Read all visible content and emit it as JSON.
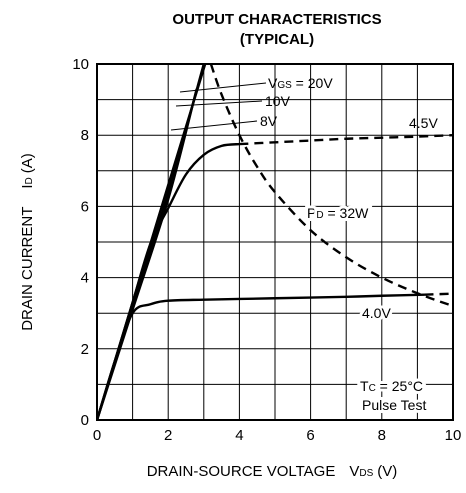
{
  "chart_data": {
    "type": "line",
    "title": "OUTPUT CHARACTERISTICS",
    "subtitle": "(TYPICAL)",
    "xlabel": "DRAIN-SOURCE VOLTAGE",
    "xlabel_symbol_main": "V",
    "xlabel_symbol_sub": "DS",
    "xlabel_unit": "(V)",
    "ylabel": "DRAIN CURRENT",
    "ylabel_symbol_main": "I",
    "ylabel_symbol_sub": "D",
    "ylabel_unit": "(A)",
    "xlim": [
      0,
      10
    ],
    "ylim": [
      0,
      10
    ],
    "xticks": [
      0,
      2,
      4,
      6,
      8,
      10
    ],
    "yticks": [
      0,
      2,
      4,
      6,
      8,
      10
    ],
    "grid": true,
    "series": [
      {
        "name": "VGS = 20V",
        "style": "solid",
        "x": [
          0,
          1,
          2,
          3.1
        ],
        "y": [
          0,
          3.3,
          6.6,
          10.2
        ]
      },
      {
        "name": "10V",
        "style": "solid",
        "x": [
          0,
          1,
          2,
          3.0
        ],
        "y": [
          0,
          3.2,
          6.4,
          10.0
        ]
      },
      {
        "name": "8V",
        "style": "solid",
        "x": [
          0,
          1,
          2,
          2.8
        ],
        "y": [
          0,
          3.1,
          6.2,
          9.3
        ]
      },
      {
        "name": "4.5V",
        "style": "solid",
        "x": [
          0,
          0.5,
          1,
          1.5,
          2,
          2.5,
          3,
          3.5,
          4.0
        ],
        "y": [
          0,
          1.65,
          3.3,
          4.95,
          5.95,
          6.9,
          7.45,
          7.7,
          7.75
        ]
      },
      {
        "name": "4.5V",
        "style": "dashed",
        "x": [
          4.0,
          5,
          6,
          7,
          8,
          9,
          10
        ],
        "y": [
          7.75,
          7.8,
          7.85,
          7.9,
          7.93,
          7.96,
          8.0
        ]
      },
      {
        "name": "4.0V",
        "style": "solid",
        "x": [
          0,
          0.5,
          1,
          1.5,
          2,
          3,
          4,
          5,
          6,
          7,
          8,
          9.2
        ],
        "y": [
          0,
          1.65,
          3.0,
          3.25,
          3.35,
          3.38,
          3.4,
          3.42,
          3.44,
          3.46,
          3.49,
          3.52
        ]
      },
      {
        "name": "4.0V",
        "style": "dashed",
        "x": [
          9.2,
          10
        ],
        "y": [
          3.52,
          3.55
        ]
      },
      {
        "name": "PD = 32W",
        "style": "dashed",
        "x": [
          3.2,
          3.5,
          4,
          4.5,
          5,
          6,
          7,
          8,
          9,
          10
        ],
        "y": [
          10.0,
          9.14,
          8.0,
          7.11,
          6.4,
          5.33,
          4.57,
          4.0,
          3.56,
          3.2
        ]
      }
    ],
    "annotations": {
      "vgs_main": "V",
      "vgs_sub": "GS",
      "vgs_rest": " = 20V",
      "v10": "10V",
      "v8": "8V",
      "v45": "4.5V",
      "pd_main": "P",
      "pd_sub": "D",
      "pd_rest": " = 32W",
      "v40": "4.0V",
      "tc_main": "T",
      "tc_sub": "C",
      "tc_rest": " = 25°C",
      "pulse": "Pulse Test"
    }
  }
}
